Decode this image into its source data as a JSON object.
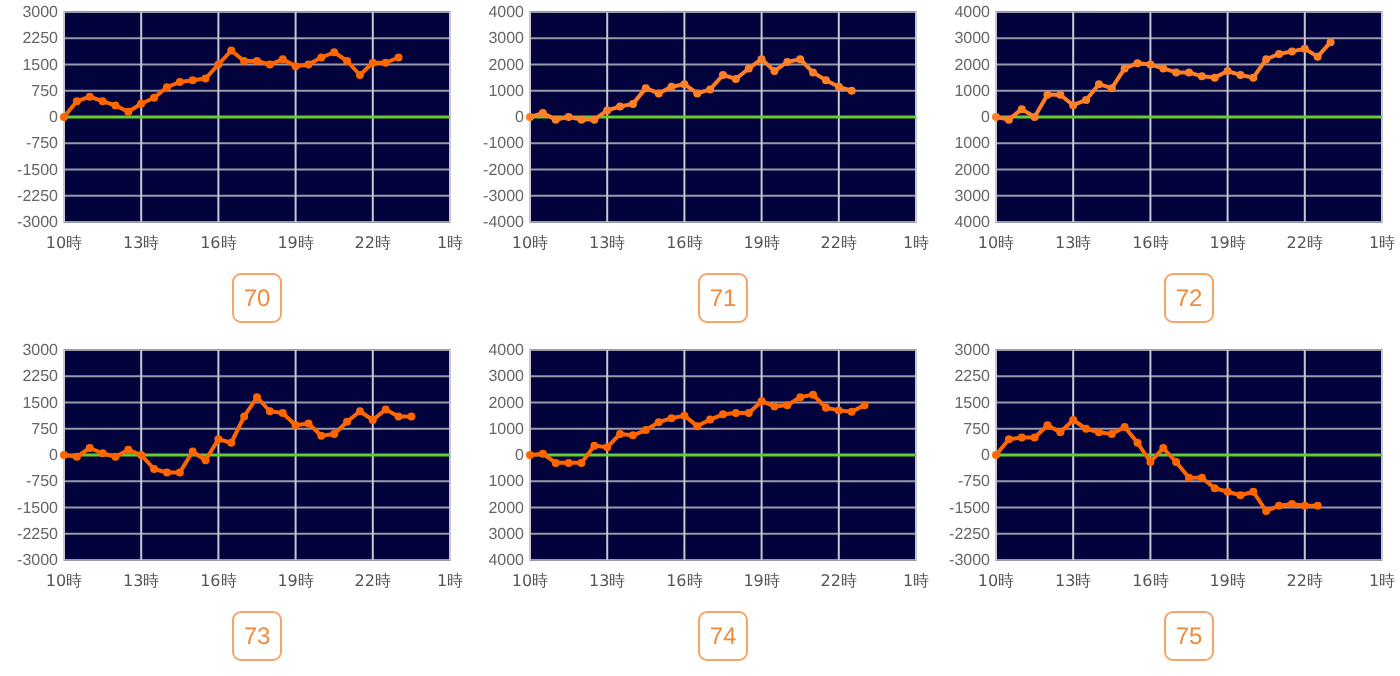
{
  "chart_data": [
    {
      "type": "line",
      "title": "70",
      "x": [
        "2000-01-01T10:00",
        "2000-01-01T10:30",
        "2000-01-01T11:00",
        "2000-01-01T11:30",
        "2000-01-01T12:00",
        "2000-01-01T12:30",
        "2000-01-01T13:00",
        "2000-01-01T13:30",
        "2000-01-01T14:00",
        "2000-01-01T14:30",
        "2000-01-01T15:00",
        "2000-01-01T15:30",
        "2000-01-01T16:00",
        "2000-01-01T16:30",
        "2000-01-01T17:00",
        "2000-01-01T17:30",
        "2000-01-01T18:00",
        "2000-01-01T18:30",
        "2000-01-01T19:00",
        "2000-01-01T19:30",
        "2000-01-01T20:00",
        "2000-01-01T20:30",
        "2000-01-01T21:00",
        "2000-01-01T21:30",
        "2000-01-01T22:00",
        "2000-01-01T22:30",
        "2000-01-01T23:00"
      ],
      "series": [
        {
          "color": "#ff6600",
          "values": [
            0,
            450,
            580,
            450,
            330,
            150,
            380,
            550,
            850,
            1000,
            1050,
            1100,
            1500,
            1900,
            1600,
            1600,
            1500,
            1650,
            1450,
            1500,
            1700,
            1850,
            1600,
            1200,
            1550,
            1550,
            1700
          ]
        }
      ],
      "xlim": [
        "2000-01-01T10:00",
        "2000-01-02T01:00"
      ],
      "xticks": [
        {
          "value": "2000-01-01T10:00",
          "label": "10時"
        },
        {
          "value": "2000-01-01T13:00",
          "label": "13時"
        },
        {
          "value": "2000-01-01T16:00",
          "label": "16時"
        },
        {
          "value": "2000-01-01T19:00",
          "label": "19時"
        },
        {
          "value": "2000-01-01T22:00",
          "label": "22時"
        },
        {
          "value": "2000-01-02T01:00",
          "label": "1時"
        }
      ],
      "ylim": [
        -3000,
        3000
      ],
      "yticks": [
        3000,
        2250,
        1500,
        750,
        0,
        -750,
        -1500,
        -2250,
        -3000
      ],
      "grid": true,
      "marker": "circle",
      "ref_lines": [
        {
          "axis": "y",
          "value": 0,
          "color": "#66cc33"
        }
      ]
    },
    {
      "type": "line",
      "title": "71",
      "x": [
        "2000-01-01T10:00",
        "2000-01-01T10:30",
        "2000-01-01T11:00",
        "2000-01-01T11:30",
        "2000-01-01T12:00",
        "2000-01-01T12:30",
        "2000-01-01T13:00",
        "2000-01-01T13:30",
        "2000-01-01T14:00",
        "2000-01-01T14:30",
        "2000-01-01T15:00",
        "2000-01-01T15:30",
        "2000-01-01T16:00",
        "2000-01-01T16:30",
        "2000-01-01T17:00",
        "2000-01-01T17:30",
        "2000-01-01T18:00",
        "2000-01-01T18:30",
        "2000-01-01T19:00",
        "2000-01-01T19:30",
        "2000-01-01T20:00",
        "2000-01-01T20:30",
        "2000-01-01T21:00",
        "2000-01-01T21:30",
        "2000-01-01T22:00",
        "2000-01-01T22:30"
      ],
      "series": [
        {
          "color": "#ff7f27",
          "values": [
            0,
            150,
            -100,
            0,
            -100,
            -100,
            250,
            400,
            500,
            1100,
            900,
            1150,
            1250,
            900,
            1050,
            1600,
            1450,
            1850,
            2200,
            1750,
            2100,
            2200,
            1700,
            1400,
            1150,
            1000
          ]
        }
      ],
      "xlim": [
        "2000-01-01T10:00",
        "2000-01-02T01:00"
      ],
      "xticks": [
        {
          "value": "2000-01-01T10:00",
          "label": "10時"
        },
        {
          "value": "2000-01-01T13:00",
          "label": "13時"
        },
        {
          "value": "2000-01-01T16:00",
          "label": "16時"
        },
        {
          "value": "2000-01-01T19:00",
          "label": "19時"
        },
        {
          "value": "2000-01-01T22:00",
          "label": "22時"
        },
        {
          "value": "2000-01-02T01:00",
          "label": "1時"
        }
      ],
      "ylim": [
        -4000,
        4000
      ],
      "yticks": [
        4000,
        3000,
        2000,
        1000,
        0,
        -1000,
        -2000,
        -3000,
        -4000
      ],
      "grid": true,
      "marker": "circle",
      "ref_lines": [
        {
          "axis": "y",
          "value": 0,
          "color": "#66cc33"
        }
      ]
    },
    {
      "type": "line",
      "title": "72",
      "x": [
        "2000-01-01T10:00",
        "2000-01-01T10:30",
        "2000-01-01T11:00",
        "2000-01-01T11:30",
        "2000-01-01T12:00",
        "2000-01-01T12:30",
        "2000-01-01T13:00",
        "2000-01-01T13:30",
        "2000-01-01T14:00",
        "2000-01-01T14:30",
        "2000-01-01T15:00",
        "2000-01-01T15:30",
        "2000-01-01T16:00",
        "2000-01-01T16:30",
        "2000-01-01T17:00",
        "2000-01-01T17:30",
        "2000-01-01T18:00",
        "2000-01-01T18:30",
        "2000-01-01T19:00",
        "2000-01-01T19:30",
        "2000-01-01T20:00",
        "2000-01-01T20:30",
        "2000-01-01T21:00",
        "2000-01-01T21:30",
        "2000-01-01T22:00",
        "2000-01-01T22:30",
        "2000-01-01T23:00"
      ],
      "series": [
        {
          "color": "#ff7f27",
          "values": [
            0,
            -100,
            300,
            0,
            850,
            850,
            450,
            650,
            1250,
            1100,
            1850,
            2050,
            2000,
            1850,
            1700,
            1700,
            1550,
            1500,
            1750,
            1600,
            1500,
            2200,
            2400,
            2500,
            2600,
            2300,
            2850
          ]
        }
      ],
      "xlim": [
        "2000-01-01T10:00",
        "2000-01-02T01:00"
      ],
      "xticks": [
        {
          "value": "2000-01-01T10:00",
          "label": "10時"
        },
        {
          "value": "2000-01-01T13:00",
          "label": "13時"
        },
        {
          "value": "2000-01-01T16:00",
          "label": "16時"
        },
        {
          "value": "2000-01-01T19:00",
          "label": "19時"
        },
        {
          "value": "2000-01-01T22:00",
          "label": "22時"
        },
        {
          "value": "2000-01-02T01:00",
          "label": "1時"
        }
      ],
      "ylim": [
        -4000,
        4000
      ],
      "yticks": [
        4000,
        3000,
        2000,
        1000,
        0,
        {
          "value": -1000,
          "label": "1000"
        },
        {
          "value": -2000,
          "label": "2000"
        },
        {
          "value": -3000,
          "label": "3000"
        },
        {
          "value": -4000,
          "label": "4000"
        }
      ],
      "grid": true,
      "marker": "circle",
      "ref_lines": [
        {
          "axis": "y",
          "value": 0,
          "color": "#66cc33"
        }
      ]
    },
    {
      "type": "line",
      "title": "73",
      "x": [
        "2000-01-01T10:00",
        "2000-01-01T10:30",
        "2000-01-01T11:00",
        "2000-01-01T11:30",
        "2000-01-01T12:00",
        "2000-01-01T12:30",
        "2000-01-01T13:00",
        "2000-01-01T13:30",
        "2000-01-01T14:00",
        "2000-01-01T14:30",
        "2000-01-01T15:00",
        "2000-01-01T15:30",
        "2000-01-01T16:00",
        "2000-01-01T16:30",
        "2000-01-01T17:00",
        "2000-01-01T17:30",
        "2000-01-01T18:00",
        "2000-01-01T18:30",
        "2000-01-01T19:00",
        "2000-01-01T19:30",
        "2000-01-01T20:00",
        "2000-01-01T20:30",
        "2000-01-01T21:00",
        "2000-01-01T21:30",
        "2000-01-01T22:00",
        "2000-01-01T22:30",
        "2000-01-01T23:00",
        "2000-01-01T23:30"
      ],
      "series": [
        {
          "color": "#ff6600",
          "values": [
            0,
            -50,
            200,
            50,
            -50,
            150,
            0,
            -400,
            -500,
            -500,
            100,
            -150,
            450,
            350,
            1100,
            1650,
            1250,
            1200,
            850,
            900,
            550,
            600,
            950,
            1250,
            1000,
            1300,
            1100,
            1100
          ]
        }
      ],
      "xlim": [
        "2000-01-01T10:00",
        "2000-01-02T01:00"
      ],
      "xticks": [
        {
          "value": "2000-01-01T10:00",
          "label": "10時"
        },
        {
          "value": "2000-01-01T13:00",
          "label": "13時"
        },
        {
          "value": "2000-01-01T16:00",
          "label": "16時"
        },
        {
          "value": "2000-01-01T19:00",
          "label": "19時"
        },
        {
          "value": "2000-01-01T22:00",
          "label": "22時"
        },
        {
          "value": "2000-01-02T01:00",
          "label": "1時"
        }
      ],
      "ylim": [
        -3000,
        3000
      ],
      "yticks": [
        3000,
        2250,
        1500,
        750,
        0,
        -750,
        -1500,
        -2250,
        -3000
      ],
      "grid": true,
      "marker": "circle",
      "ref_lines": [
        {
          "axis": "y",
          "value": 0,
          "color": "#66cc33"
        }
      ]
    },
    {
      "type": "line",
      "title": "74",
      "x": [
        "2000-01-01T10:00",
        "2000-01-01T10:30",
        "2000-01-01T11:00",
        "2000-01-01T11:30",
        "2000-01-01T12:00",
        "2000-01-01T12:30",
        "2000-01-01T13:00",
        "2000-01-01T13:30",
        "2000-01-01T14:00",
        "2000-01-01T14:30",
        "2000-01-01T15:00",
        "2000-01-01T15:30",
        "2000-01-01T16:00",
        "2000-01-01T16:30",
        "2000-01-01T17:00",
        "2000-01-01T17:30",
        "2000-01-01T18:00",
        "2000-01-01T18:30",
        "2000-01-01T19:00",
        "2000-01-01T19:30",
        "2000-01-01T20:00",
        "2000-01-01T20:30",
        "2000-01-01T21:00",
        "2000-01-01T21:30",
        "2000-01-01T22:00",
        "2000-01-01T22:30",
        "2000-01-01T23:00"
      ],
      "series": [
        {
          "color": "#ff6600",
          "values": [
            0,
            50,
            -300,
            -300,
            -300,
            350,
            300,
            800,
            750,
            950,
            1250,
            1400,
            1500,
            1100,
            1350,
            1550,
            1600,
            1600,
            2050,
            1850,
            1900,
            2200,
            2300,
            1800,
            1700,
            1650,
            1900
          ]
        }
      ],
      "xlim": [
        "2000-01-01T10:00",
        "2000-01-02T01:00"
      ],
      "xticks": [
        {
          "value": "2000-01-01T10:00",
          "label": "10時"
        },
        {
          "value": "2000-01-01T13:00",
          "label": "13時"
        },
        {
          "value": "2000-01-01T16:00",
          "label": "16時"
        },
        {
          "value": "2000-01-01T19:00",
          "label": "19時"
        },
        {
          "value": "2000-01-01T22:00",
          "label": "22時"
        },
        {
          "value": "2000-01-02T01:00",
          "label": "1時"
        }
      ],
      "ylim": [
        -4000,
        4000
      ],
      "yticks": [
        4000,
        3000,
        2000,
        1000,
        0,
        {
          "value": -1000,
          "label": "1000"
        },
        {
          "value": -2000,
          "label": "2000"
        },
        {
          "value": -3000,
          "label": "3000"
        },
        {
          "value": -4000,
          "label": "4000"
        }
      ],
      "grid": true,
      "marker": "circle",
      "ref_lines": [
        {
          "axis": "y",
          "value": 0,
          "color": "#66cc33"
        }
      ]
    },
    {
      "type": "line",
      "title": "75",
      "x": [
        "2000-01-01T10:00",
        "2000-01-01T10:30",
        "2000-01-01T11:00",
        "2000-01-01T11:30",
        "2000-01-01T12:00",
        "2000-01-01T12:30",
        "2000-01-01T13:00",
        "2000-01-01T13:30",
        "2000-01-01T14:00",
        "2000-01-01T14:30",
        "2000-01-01T15:00",
        "2000-01-01T15:30",
        "2000-01-01T16:00",
        "2000-01-01T16:30",
        "2000-01-01T17:00",
        "2000-01-01T17:30",
        "2000-01-01T18:00",
        "2000-01-01T18:30",
        "2000-01-01T19:00",
        "2000-01-01T19:30",
        "2000-01-01T20:00",
        "2000-01-01T20:30",
        "2000-01-01T21:00",
        "2000-01-01T21:30",
        "2000-01-01T22:00",
        "2000-01-01T22:30"
      ],
      "series": [
        {
          "color": "#ff6600",
          "values": [
            0,
            450,
            500,
            500,
            850,
            650,
            1000,
            750,
            650,
            600,
            800,
            350,
            -200,
            200,
            -200,
            -650,
            -650,
            -950,
            -1050,
            -1150,
            -1050,
            -1600,
            -1450,
            -1400,
            -1450,
            -1450
          ]
        }
      ],
      "xlim": [
        "2000-01-01T10:00",
        "2000-01-02T01:00"
      ],
      "xticks": [
        {
          "value": "2000-01-01T10:00",
          "label": "10時"
        },
        {
          "value": "2000-01-01T13:00",
          "label": "13時"
        },
        {
          "value": "2000-01-01T16:00",
          "label": "16時"
        },
        {
          "value": "2000-01-01T19:00",
          "label": "19時"
        },
        {
          "value": "2000-01-01T22:00",
          "label": "22時"
        },
        {
          "value": "2000-01-02T01:00",
          "label": "1時"
        }
      ],
      "ylim": [
        -3000,
        3000
      ],
      "yticks": [
        3000,
        2250,
        1500,
        750,
        0,
        -750,
        -1500,
        -2250,
        -3000
      ],
      "grid": true,
      "marker": "circle",
      "ref_lines": [
        {
          "axis": "y",
          "value": 0,
          "color": "#66cc33"
        }
      ]
    }
  ]
}
